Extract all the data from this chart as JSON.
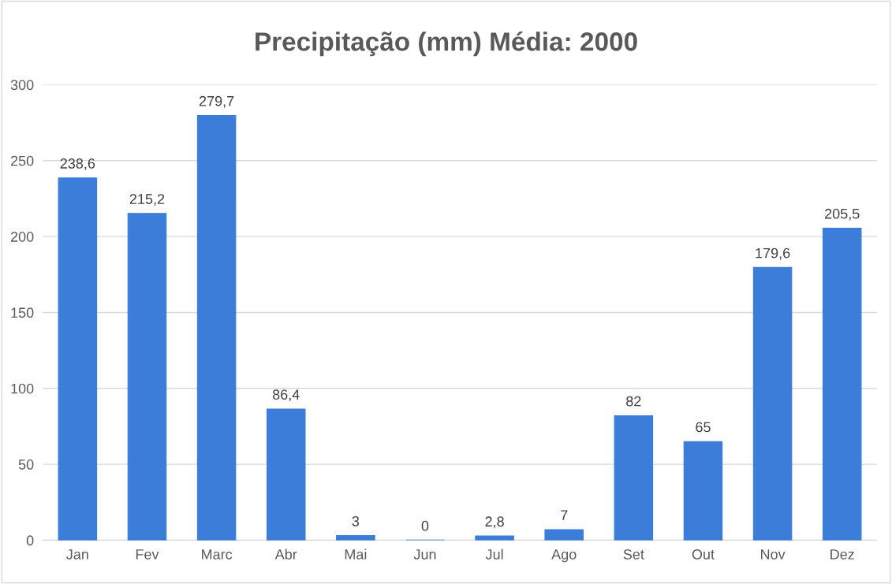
{
  "chart_data": {
    "type": "bar",
    "title": "Precipitação (mm) Média: 2000",
    "categories": [
      "Jan",
      "Fev",
      "Marc",
      "Abr",
      "Mai",
      "Jun",
      "Jul",
      "Ago",
      "Set",
      "Out",
      "Nov",
      "Dez"
    ],
    "values": [
      238.6,
      215.2,
      279.7,
      86.4,
      3,
      0,
      2.8,
      7,
      82,
      65,
      179.6,
      205.5
    ],
    "value_labels": [
      "238,6",
      "215,2",
      "279,7",
      "86,4",
      "3",
      "0",
      "2,8",
      "7",
      "82",
      "65",
      "179,6",
      "205,5"
    ],
    "color": "#3b7dd8",
    "ylim": [
      0,
      300
    ],
    "yticks": [
      0,
      50,
      100,
      150,
      200,
      250,
      300
    ],
    "grid": "y",
    "legend": false
  }
}
